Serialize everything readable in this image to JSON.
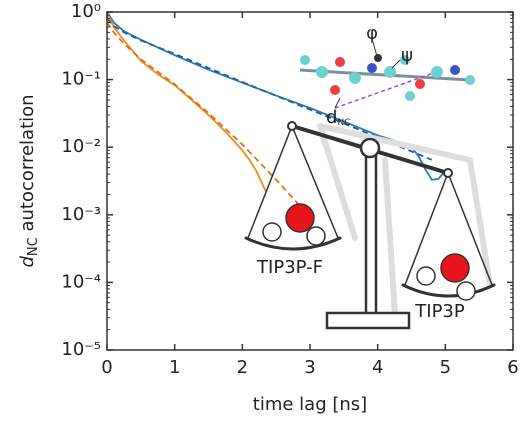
{
  "chart_data": {
    "type": "line",
    "xlabel": "time lag [ns]",
    "ylabel": {
      "symbol": "d",
      "subscript": "NC",
      "text": "autocorrelation"
    },
    "xlim": [
      0,
      6
    ],
    "xticks": [
      0,
      1,
      2,
      3,
      4,
      5,
      6
    ],
    "ylim": [
      1e-05,
      1
    ],
    "yscale": "log",
    "yticks": [
      {
        "value": 1,
        "label": "10⁰"
      },
      {
        "value": 0.1,
        "label": "10⁻¹"
      },
      {
        "value": 0.01,
        "label": "10⁻²"
      },
      {
        "value": 0.001,
        "label": "10⁻³"
      },
      {
        "value": 0.0001,
        "label": "10⁻⁴"
      },
      {
        "value": 1e-05,
        "label": "10⁻⁵"
      }
    ],
    "series": [
      {
        "name": "TIP3P",
        "color": "#2b7bba",
        "linestyle": "solid",
        "x": [
          0,
          0.1,
          0.25,
          0.5,
          1,
          1.5,
          2,
          2.5,
          3,
          3.5,
          4,
          4.3,
          4.5,
          4.6,
          4.7,
          4.8,
          4.9,
          5.0
        ],
        "values": [
          1,
          0.7,
          0.52,
          0.39,
          0.23,
          0.14,
          0.09,
          0.058,
          0.038,
          0.024,
          0.015,
          0.012,
          0.01,
          0.0075,
          0.0048,
          0.0033,
          0.0034,
          0.0045
        ]
      },
      {
        "name": "TIP3P-F",
        "color": "#f08a1c",
        "linestyle": "solid",
        "x": [
          0,
          0.1,
          0.25,
          0.5,
          0.75,
          1,
          1.25,
          1.5,
          1.75,
          2,
          2.1,
          2.2,
          2.3,
          2.35
        ],
        "values": [
          1,
          0.6,
          0.38,
          0.19,
          0.12,
          0.083,
          0.05,
          0.03,
          0.017,
          0.009,
          0.0066,
          0.0046,
          0.0028,
          0.0022
        ]
      },
      {
        "color": "#1f5f99",
        "linestyle": "dashed",
        "x": [
          0,
          0.1,
          0.25,
          0.5,
          1,
          2,
          3,
          4,
          4.8
        ],
        "values": [
          0.8,
          0.62,
          0.5,
          0.38,
          0.24,
          0.092,
          0.036,
          0.014,
          0.0065
        ]
      },
      {
        "color": "#d9731a",
        "linestyle": "dashed",
        "x": [
          0,
          0.1,
          0.25,
          0.5,
          1,
          1.5,
          2,
          2.5,
          2.9
        ],
        "values": [
          0.7,
          0.5,
          0.34,
          0.2,
          0.085,
          0.032,
          0.011,
          0.0033,
          0.0012
        ]
      }
    ],
    "annotations": {
      "phi": "φ",
      "psi": "ψ",
      "distance": {
        "symbol": "d",
        "subscript": "NC"
      }
    }
  }
}
